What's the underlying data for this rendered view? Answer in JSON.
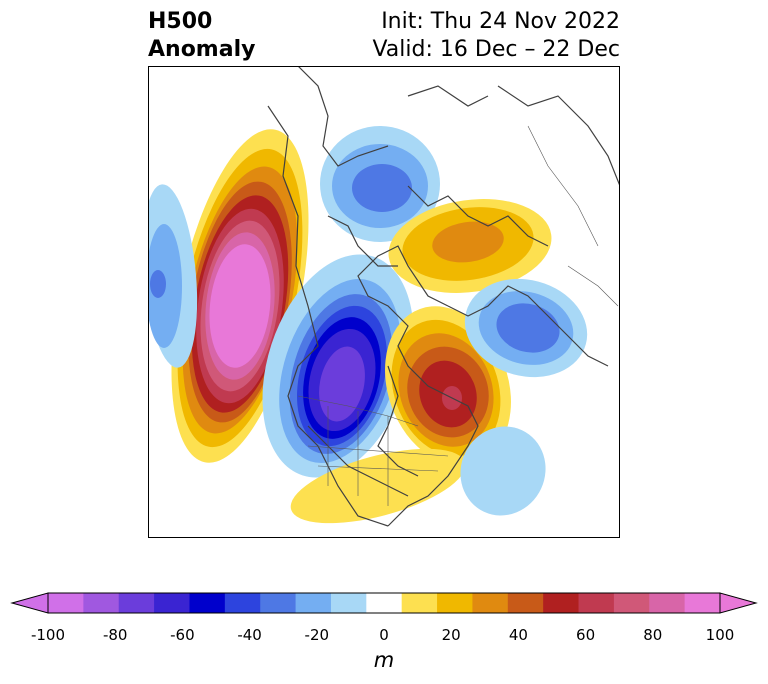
{
  "header": {
    "title_line1": "H500",
    "title_line2": "Anomaly",
    "init": "Init: Thu 24 Nov 2022",
    "valid": "Valid: 16 Dec – 22 Dec"
  },
  "colorbar": {
    "unit": "m",
    "ticks": [
      "-100",
      "-80",
      "-60",
      "-40",
      "-20",
      "0",
      "20",
      "40",
      "60",
      "80",
      "100"
    ],
    "colors": [
      "#d070e8",
      "#a058e0",
      "#6b3ddb",
      "#3a24d2",
      "#0000cc",
      "#2d44de",
      "#4e78e4",
      "#74aef2",
      "#a8d8f6",
      "#ffffff",
      "#fde050",
      "#f0b800",
      "#e08a10",
      "#c85a18",
      "#b02020",
      "#c03a50",
      "#d05878",
      "#d865a8",
      "#e878d8"
    ],
    "under_color": "#d070e8",
    "over_color": "#e878d8"
  }
}
